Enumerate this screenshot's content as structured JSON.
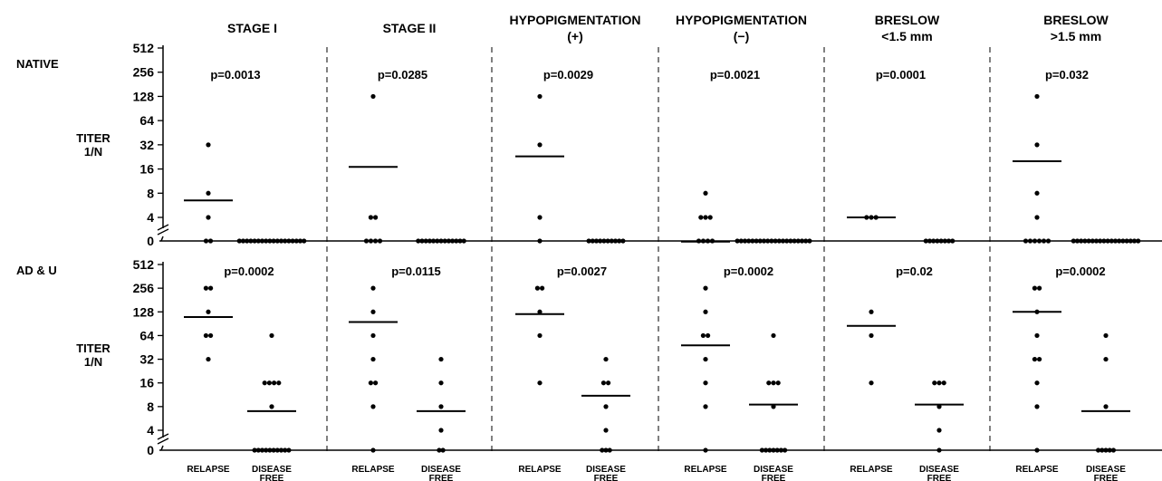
{
  "panels": [
    {
      "label": "STAGE I",
      "sub": ""
    },
    {
      "label": "STAGE II",
      "sub": ""
    },
    {
      "label": "HYPOPIGMENTATION",
      "sub": "(+)"
    },
    {
      "label": "HYPOPIGMENTATION",
      "sub": "(−)"
    },
    {
      "label": "BRESLOW",
      "sub": "<1.5 mm"
    },
    {
      "label": "BRESLOW",
      "sub": ">1.5 mm"
    }
  ],
  "rows": [
    {
      "label": "NATIVE",
      "ylabel": [
        "TITER",
        "1/N"
      ]
    },
    {
      "label": "AD & U",
      "ylabel": [
        "TITER",
        "1/N"
      ]
    }
  ],
  "x_categories": [
    [
      "RELAPSE",
      ""
    ],
    [
      "DISEASE",
      "FREE"
    ]
  ],
  "y_tick_labels": [
    "0",
    "4",
    "8",
    "16",
    "32",
    "64",
    "128",
    "256",
    "512"
  ],
  "chart_data": {
    "type": "scatter",
    "title": "",
    "y_axis": {
      "label": "TITER 1/N",
      "scale": "log2",
      "ticks": [
        0,
        4,
        8,
        16,
        32,
        64,
        128,
        256,
        512
      ],
      "axis_break_after": 0
    },
    "x_categories": [
      "RELAPSE",
      "DISEASE FREE"
    ],
    "groups": [
      {
        "row": "NATIVE",
        "panel": "STAGE I",
        "p_value": "p=0.0013",
        "relapse": [
          32,
          8,
          4,
          0,
          0
        ],
        "relapse_mean": 6.5,
        "disease_free": [
          0,
          0,
          0,
          0,
          0,
          0,
          0,
          0,
          0,
          0,
          0,
          0,
          0,
          0,
          0,
          0,
          0,
          0
        ],
        "disease_free_mean": null
      },
      {
        "row": "NATIVE",
        "panel": "STAGE II",
        "p_value": "p=0.0285",
        "relapse": [
          128,
          4,
          4,
          0,
          0,
          0,
          0
        ],
        "relapse_mean": 17,
        "disease_free": [
          0,
          0,
          0,
          0,
          0,
          0,
          0,
          0,
          0,
          0,
          0,
          0,
          0
        ],
        "disease_free_mean": null
      },
      {
        "row": "NATIVE",
        "panel": "HYPOPIGMENTATION (+)",
        "p_value": "p=0.0029",
        "relapse": [
          128,
          32,
          4,
          0
        ],
        "relapse_mean": 23,
        "disease_free": [
          0,
          0,
          0,
          0,
          0,
          0,
          0,
          0,
          0,
          0
        ],
        "disease_free_mean": null
      },
      {
        "row": "NATIVE",
        "panel": "HYPOPIGMENTATION (−)",
        "p_value": "p=0.0021",
        "relapse": [
          8,
          4,
          4,
          4,
          0,
          0,
          0,
          0
        ],
        "relapse_mean": 2,
        "disease_free": [
          0,
          0,
          0,
          0,
          0,
          0,
          0,
          0,
          0,
          0,
          0,
          0,
          0,
          0,
          0,
          0,
          0,
          0,
          0,
          0
        ],
        "disease_free_mean": null
      },
      {
        "row": "NATIVE",
        "panel": "BRESLOW <1.5 mm",
        "p_value": "p=0.0001",
        "relapse": [
          4,
          4,
          4
        ],
        "relapse_mean": 4,
        "disease_free": [
          0,
          0,
          0,
          0,
          0,
          0,
          0,
          0
        ],
        "disease_free_mean": null
      },
      {
        "row": "NATIVE",
        "panel": "BRESLOW >1.5 mm",
        "p_value": "p=0.032",
        "relapse": [
          128,
          32,
          8,
          4,
          0,
          0,
          0,
          0,
          0,
          0
        ],
        "relapse_mean": 20,
        "disease_free": [
          0,
          0,
          0,
          0,
          0,
          0,
          0,
          0,
          0,
          0,
          0,
          0,
          0,
          0,
          0,
          0,
          0,
          0
        ],
        "disease_free_mean": null
      },
      {
        "row": "AD & U",
        "panel": "STAGE I",
        "p_value": "p=0.0002",
        "relapse": [
          256,
          256,
          128,
          64,
          64,
          32
        ],
        "relapse_mean": 110,
        "disease_free": [
          64,
          16,
          16,
          16,
          16,
          8,
          0,
          0,
          0,
          0,
          0,
          0,
          0,
          0,
          0,
          0
        ],
        "disease_free_mean": 7
      },
      {
        "row": "AD & U",
        "panel": "STAGE II",
        "p_value": "p=0.0115",
        "relapse": [
          256,
          128,
          64,
          32,
          16,
          16,
          8,
          0
        ],
        "relapse_mean": 95,
        "disease_free": [
          32,
          16,
          8,
          4,
          0,
          0
        ],
        "disease_free_mean": 7
      },
      {
        "row": "AD & U",
        "panel": "HYPOPIGMENTATION (+)",
        "p_value": "p=0.0027",
        "relapse": [
          256,
          256,
          128,
          64,
          16
        ],
        "relapse_mean": 120,
        "disease_free": [
          32,
          16,
          16,
          8,
          4,
          0,
          0,
          0
        ],
        "disease_free_mean": 11
      },
      {
        "row": "AD & U",
        "panel": "HYPOPIGMENTATION (−)",
        "p_value": "p=0.0002",
        "relapse": [
          256,
          128,
          64,
          64,
          32,
          16,
          8,
          0
        ],
        "relapse_mean": 48,
        "disease_free": [
          64,
          16,
          16,
          16,
          8,
          0,
          0,
          0,
          0,
          0,
          0,
          0
        ],
        "disease_free_mean": 8.5
      },
      {
        "row": "AD & U",
        "panel": "BRESLOW <1.5 mm",
        "p_value": "p=0.02",
        "relapse": [
          128,
          64,
          16
        ],
        "relapse_mean": 85,
        "disease_free": [
          16,
          16,
          16,
          8,
          4,
          0
        ],
        "disease_free_mean": 8.5
      },
      {
        "row": "AD & U",
        "panel": "BRESLOW >1.5 mm",
        "p_value": "p=0.0002",
        "relapse": [
          256,
          256,
          128,
          64,
          32,
          32,
          16,
          8,
          0
        ],
        "relapse_mean": 128,
        "disease_free": [
          64,
          32,
          8,
          0,
          0,
          0,
          0,
          0
        ],
        "disease_free_mean": 7
      }
    ]
  }
}
